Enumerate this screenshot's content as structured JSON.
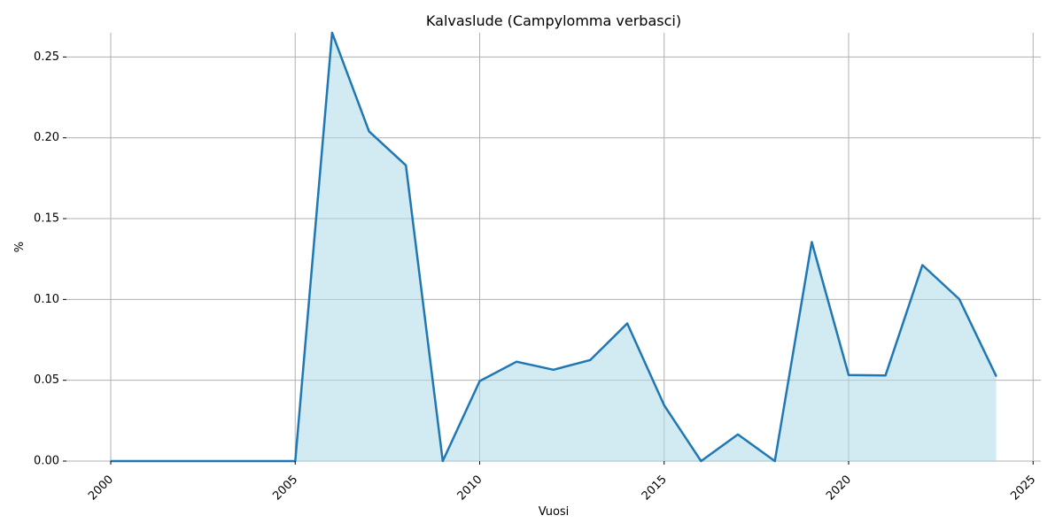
{
  "chart_data": {
    "type": "area",
    "title": "Kalvaslude (Campylomma verbasci)",
    "xlabel": "Vuosi",
    "ylabel": "%",
    "xlim": [
      2000,
      2025
    ],
    "ylim": [
      0,
      0.265
    ],
    "xticks": [
      2000,
      2005,
      2010,
      2015,
      2020,
      2025
    ],
    "yticks": [
      0.0,
      0.05,
      0.1,
      0.15,
      0.2,
      0.25
    ],
    "ytick_labels": [
      "0.00",
      "0.05",
      "0.10",
      "0.15",
      "0.20",
      "0.25"
    ],
    "grid": true,
    "series": [
      {
        "x": [
          2000,
          2001,
          2002,
          2003,
          2004,
          2005,
          2006,
          2007,
          2008,
          2009,
          2010,
          2011,
          2012,
          2013,
          2014,
          2015,
          2016,
          2017,
          2018,
          2019,
          2020,
          2021,
          2022,
          2023,
          2024
        ],
        "values": [
          0,
          0,
          0,
          0,
          0,
          0,
          0.265,
          0.204,
          0.183,
          0,
          0.0495,
          0.0615,
          0.0565,
          0.0625,
          0.0852,
          0.0345,
          0,
          0.0165,
          0,
          0.1355,
          0.0533,
          0.053,
          0.1213,
          0.1002,
          0.0525
        ],
        "line_color": "#1f77b4",
        "fill_color": "#add8e6"
      }
    ]
  }
}
